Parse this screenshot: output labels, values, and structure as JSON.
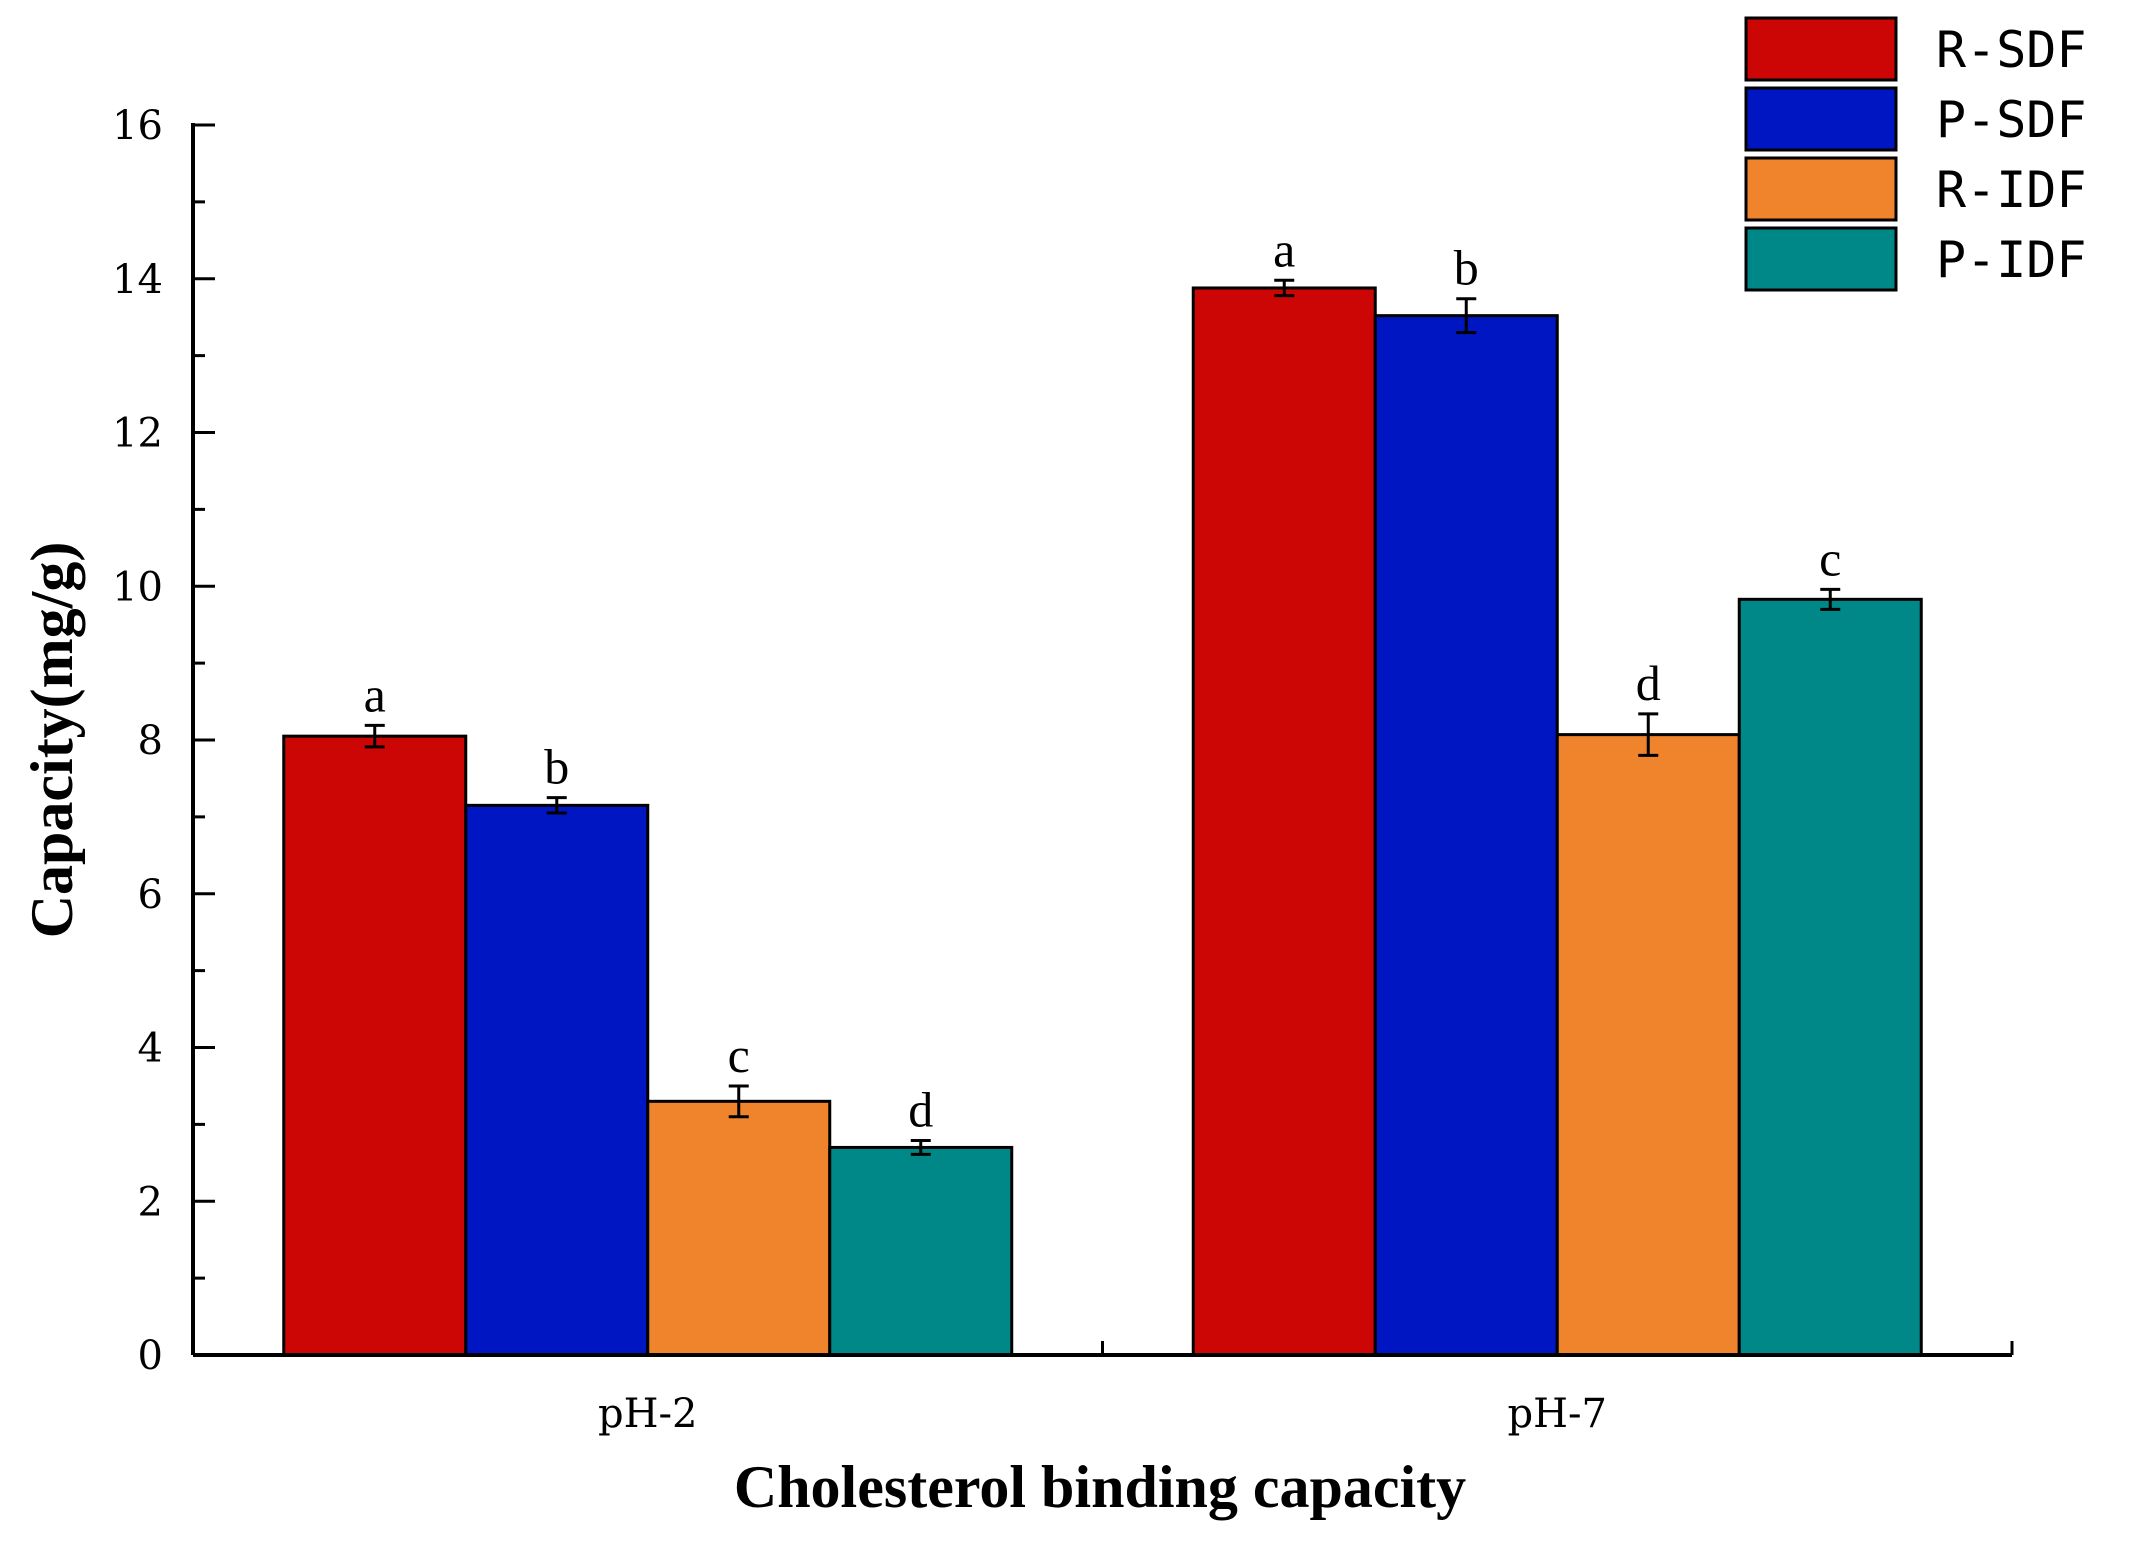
{
  "chart_data": {
    "type": "bar",
    "title": "",
    "xlabel": "Cholesterol binding capacity",
    "ylabel": "Capacity(mg/g)",
    "ylim": [
      0,
      16
    ],
    "yticks": [
      0,
      2,
      4,
      6,
      8,
      10,
      12,
      14,
      16
    ],
    "categories": [
      "pH-2",
      "pH-7"
    ],
    "legend_position": "top-right",
    "series": [
      {
        "name": "R-SDF",
        "color": "#cc0505",
        "values": [
          8.05,
          13.88
        ],
        "errors": [
          0.14,
          0.1
        ],
        "labels": [
          "a",
          "a"
        ]
      },
      {
        "name": "P-SDF",
        "color": "#0016c2",
        "values": [
          7.15,
          13.52
        ],
        "errors": [
          0.1,
          0.22
        ],
        "labels": [
          "b",
          "b"
        ]
      },
      {
        "name": "R-IDF",
        "color": "#ef842c",
        "values": [
          3.3,
          8.07
        ],
        "errors": [
          0.2,
          0.27
        ],
        "labels": [
          "c",
          "d"
        ]
      },
      {
        "name": "P-IDF",
        "color": "#008888",
        "values": [
          2.7,
          9.83
        ],
        "errors": [
          0.09,
          0.13
        ],
        "labels": [
          "d",
          "c"
        ]
      }
    ]
  }
}
